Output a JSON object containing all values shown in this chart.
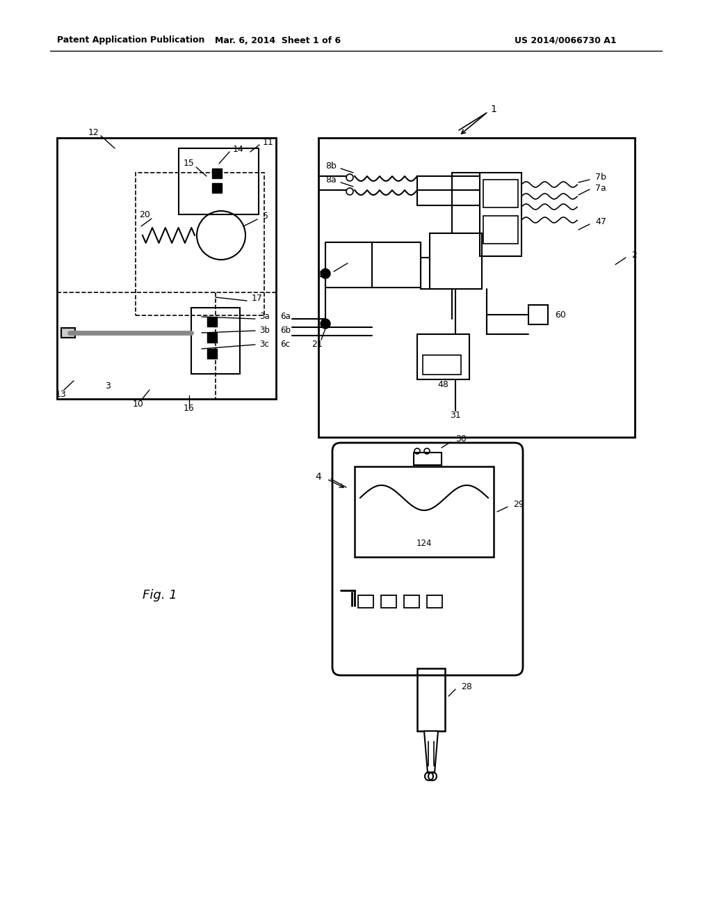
{
  "bg_color": "#ffffff",
  "header_left": "Patent Application Publication",
  "header_center": "Mar. 6, 2014  Sheet 1 of 6",
  "header_right": "US 2014/0066730 A1",
  "fig_label": "Fig. 1"
}
